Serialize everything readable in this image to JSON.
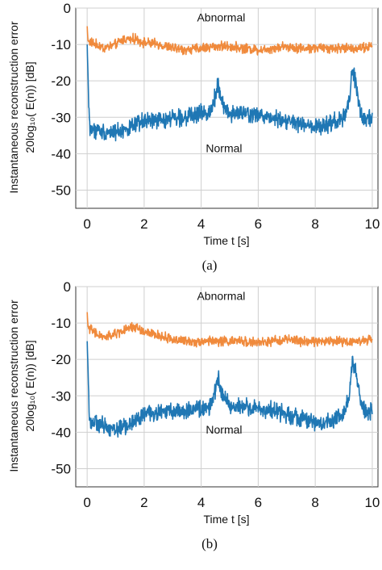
{
  "figures": [
    {
      "caption": "(a)",
      "chart_data": {
        "type": "line",
        "xlabel": "Time t [s]",
        "ylabel_line1": "Instantaneous reconstruction error",
        "ylabel_line2": "20log₁₀( E(n)) [dB]",
        "xlim": [
          -0.4,
          10.2
        ],
        "ylim": [
          -55,
          0
        ],
        "xticks": [
          0,
          2,
          4,
          6,
          8,
          10
        ],
        "yticks": [
          0,
          -10,
          -20,
          -30,
          -40,
          -50
        ],
        "grid": true,
        "annotations": [
          {
            "text": "Abnormal",
            "x": 4.7,
            "y": -2.5
          },
          {
            "text": "Normal",
            "x": 4.8,
            "y": -38.5
          }
        ],
        "series": [
          {
            "color": "#f08a3c",
            "x": [
              0,
              0.03,
              0.3,
              0.6,
              1.0,
              1.3,
              1.7,
              2.0,
              2.5,
              3.0,
              3.5,
              4.0,
              4.5,
              5.0,
              5.5,
              6.0,
              6.5,
              7.0,
              7.5,
              8.0,
              8.5,
              9.0,
              9.5,
              10.0
            ],
            "y": [
              -5,
              -9,
              -10,
              -11,
              -10,
              -8.5,
              -8.5,
              -9.5,
              -10,
              -11,
              -11.5,
              -11,
              -10.5,
              -10.5,
              -11,
              -11.5,
              -11,
              -10.5,
              -11,
              -11,
              -11,
              -11,
              -11,
              -10.5
            ]
          },
          {
            "color": "#1f77b4",
            "x": [
              0,
              0.03,
              0.06,
              0.1,
              0.5,
              1.0,
              1.5,
              2.0,
              2.5,
              3.0,
              3.5,
              4.0,
              4.3,
              4.5,
              4.6,
              4.7,
              5.0,
              5.5,
              6.0,
              6.5,
              7.0,
              7.5,
              8.0,
              8.5,
              9.0,
              9.2,
              9.3,
              9.4,
              9.6,
              9.8,
              10.0
            ],
            "y": [
              -10,
              -18,
              -28,
              -33,
              -34,
              -34,
              -33,
              -31,
              -31,
              -30,
              -30,
              -29,
              -28.5,
              -24,
              -20,
              -26,
              -29,
              -29,
              -29.5,
              -30,
              -31,
              -32,
              -33,
              -32,
              -30,
              -25,
              -17,
              -20,
              -29,
              -31,
              -30
            ]
          }
        ]
      }
    },
    {
      "caption": "(b)",
      "chart_data": {
        "type": "line",
        "xlabel": "Time t [s]",
        "ylabel_line1": "Instantaneous reconstruction error",
        "ylabel_line2": "20log₁₀( E(n)) [dB]",
        "xlim": [
          -0.4,
          10.2
        ],
        "ylim": [
          -55,
          0
        ],
        "xticks": [
          0,
          2,
          4,
          6,
          8,
          10
        ],
        "yticks": [
          0,
          -10,
          -20,
          -30,
          -40,
          -50
        ],
        "grid": true,
        "annotations": [
          {
            "text": "Abnormal",
            "x": 4.7,
            "y": -2.5
          },
          {
            "text": "Normal",
            "x": 4.8,
            "y": -39.2
          }
        ],
        "series": [
          {
            "color": "#f08a3c",
            "x": [
              0,
              0.03,
              0.3,
              0.6,
              1.0,
              1.3,
              1.7,
              2.0,
              2.5,
              3.0,
              3.5,
              4.0,
              4.5,
              5.0,
              5.5,
              6.0,
              6.5,
              7.0,
              7.5,
              8.0,
              8.5,
              9.0,
              9.5,
              10.0
            ],
            "y": [
              -7,
              -11,
              -13,
              -14,
              -13,
              -12,
              -11,
              -12.5,
              -13.5,
              -14.5,
              -15,
              -15,
              -15,
              -15,
              -15,
              -15.5,
              -15,
              -14.5,
              -15,
              -15,
              -15,
              -15,
              -15,
              -14.5
            ]
          },
          {
            "color": "#1f77b4",
            "x": [
              0,
              0.03,
              0.06,
              0.1,
              0.5,
              1.0,
              1.5,
              2.0,
              2.5,
              3.0,
              3.5,
              4.0,
              4.3,
              4.5,
              4.6,
              4.7,
              5.0,
              5.5,
              6.0,
              6.5,
              7.0,
              7.5,
              8.0,
              8.5,
              9.0,
              9.2,
              9.3,
              9.4,
              9.6,
              9.8,
              10.0
            ],
            "y": [
              -15,
              -22,
              -32,
              -37,
              -38,
              -39,
              -38,
              -35,
              -34.5,
              -34,
              -34,
              -33.5,
              -33,
              -29,
              -24,
              -29,
              -33,
              -33,
              -33.5,
              -34,
              -35,
              -36,
              -37.5,
              -37,
              -35,
              -30,
              -20,
              -23,
              -32,
              -35,
              -34
            ]
          }
        ]
      }
    }
  ]
}
